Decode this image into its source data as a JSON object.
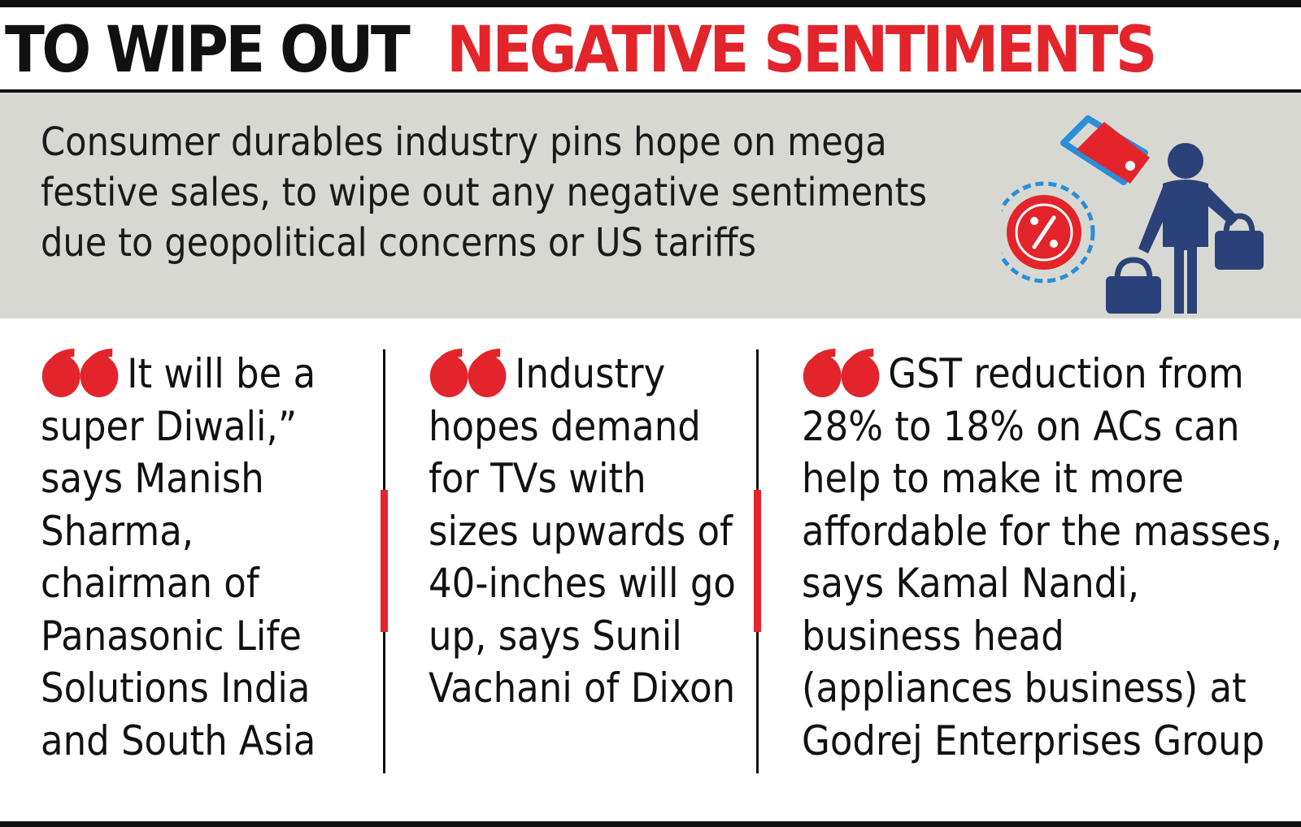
{
  "headline": {
    "part1": "TO WIPE OUT",
    "part2": "NEGATIVE SENTIMENTS"
  },
  "lede": "Consumer durables industry pins hope on mega festive sales, to wipe out any negative sentiments due to geopolitical concerns or US tariffs",
  "quotes": [
    "It will be a super Diwali,” says Manish Sharma, chairman of Panasonic Life Solutions India and South Asia",
    "Industry hopes demand for TVs with sizes upwards of 40-inches will go up, says Sunil Vachani of Dixon",
    "GST reduction from 28% to 18% on ACs can help to make it more affordable for the masses, says Kamal Nandi, business head (appliances business) at Godrej Enterprises Group"
  ],
  "icons": {
    "illustration": "shopper-with-bags-icon",
    "tag": "price-tag-icon",
    "badge": "discount-badge-icon",
    "quote": "quote-mark-icon"
  },
  "colors": {
    "accent": "#e3242b",
    "navy": "#2b4279",
    "lede_background": "#d8d8d2",
    "text": "#111111"
  }
}
